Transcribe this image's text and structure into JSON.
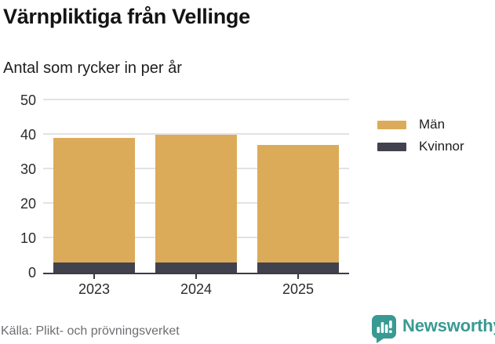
{
  "header": {
    "title": "Värnpliktiga från Vellinge",
    "subtitle": "Antal som rycker in per år"
  },
  "chart_data": {
    "type": "bar",
    "stacked": true,
    "categories": [
      "2023",
      "2024",
      "2025"
    ],
    "series": [
      {
        "name": "Kvinnor",
        "color": "#42424e",
        "values": [
          3,
          3,
          3
        ]
      },
      {
        "name": "Män",
        "color": "#dcab59",
        "values": [
          36,
          37,
          34
        ]
      }
    ],
    "totals": [
      39,
      40,
      37
    ],
    "title": "Värnpliktiga från Vellinge",
    "subtitle": "Antal som rycker in per år",
    "xlabel": "",
    "ylabel": "",
    "ylim": [
      0,
      50
    ],
    "yticks": [
      0,
      10,
      20,
      30,
      40,
      50
    ],
    "grid": true,
    "legend_position": "right"
  },
  "legend": {
    "items": [
      {
        "label": "Män",
        "color": "#dcab59"
      },
      {
        "label": "Kvinnor",
        "color": "#42424e"
      }
    ]
  },
  "footer": {
    "source": "Källa: Plikt- och prövningsverket",
    "brand": "Newsworthy"
  },
  "icons": {
    "brand_icon": "newsworthy-chart-speech-bubble-icon"
  },
  "colors": {
    "men": "#dcab59",
    "women": "#42424e",
    "brand_teal": "#399a93",
    "grid": "#e2e2e6",
    "axis": "#3c3c46",
    "source_text": "#6e6e73",
    "title_text": "#141414"
  }
}
